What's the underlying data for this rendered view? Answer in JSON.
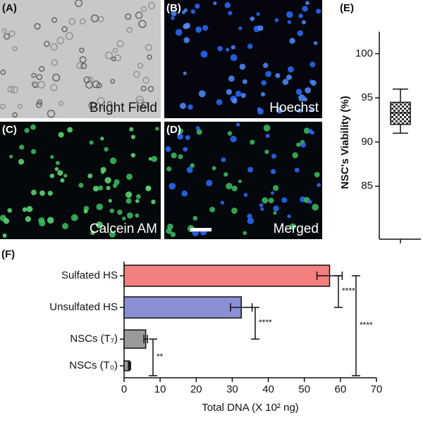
{
  "panels": [
    {
      "label": "(A)",
      "caption": "Bright Field"
    },
    {
      "label": "(B)",
      "caption": "Hoechst"
    },
    {
      "label": "(C)",
      "caption": "Calcein AM"
    },
    {
      "label": "(D)",
      "caption": "Merged"
    }
  ],
  "chart_data": [
    {
      "type": "box",
      "panel_label": "(E)",
      "ylabel": "NSC's Viability (%)",
      "ylim": [
        79,
        102.5
      ],
      "yticks": [
        85,
        90,
        95,
        100
      ],
      "whislo": 91,
      "q1": 92,
      "median": 93.3,
      "q3": 94.5,
      "whishi": 96
    },
    {
      "type": "barh",
      "panel_label": "(F)",
      "xlabel": "Total DNA (X 10² ng)",
      "categories": [
        "Sulfated HS",
        "Unsulfated HS",
        "NSCs (T₇)",
        "NSCs (T₀)"
      ],
      "values": [
        57,
        32.5,
        6,
        1.5
      ],
      "errors": [
        3.5,
        3,
        0.5,
        0.3
      ],
      "colors": [
        "#f47f7f",
        "#8a8fd6",
        "#9a9a9a",
        "#9a9a9a"
      ],
      "xlim": [
        0,
        70
      ],
      "xticks": [
        0,
        10,
        20,
        30,
        40,
        50,
        60,
        70
      ],
      "annotations": [
        {
          "text": "**",
          "between": [
            2,
            3
          ]
        },
        {
          "text": "****",
          "between": [
            1,
            2
          ]
        },
        {
          "text": "****",
          "between": [
            0,
            1
          ]
        },
        {
          "text": "****",
          "between": [
            0,
            3
          ]
        }
      ]
    }
  ]
}
